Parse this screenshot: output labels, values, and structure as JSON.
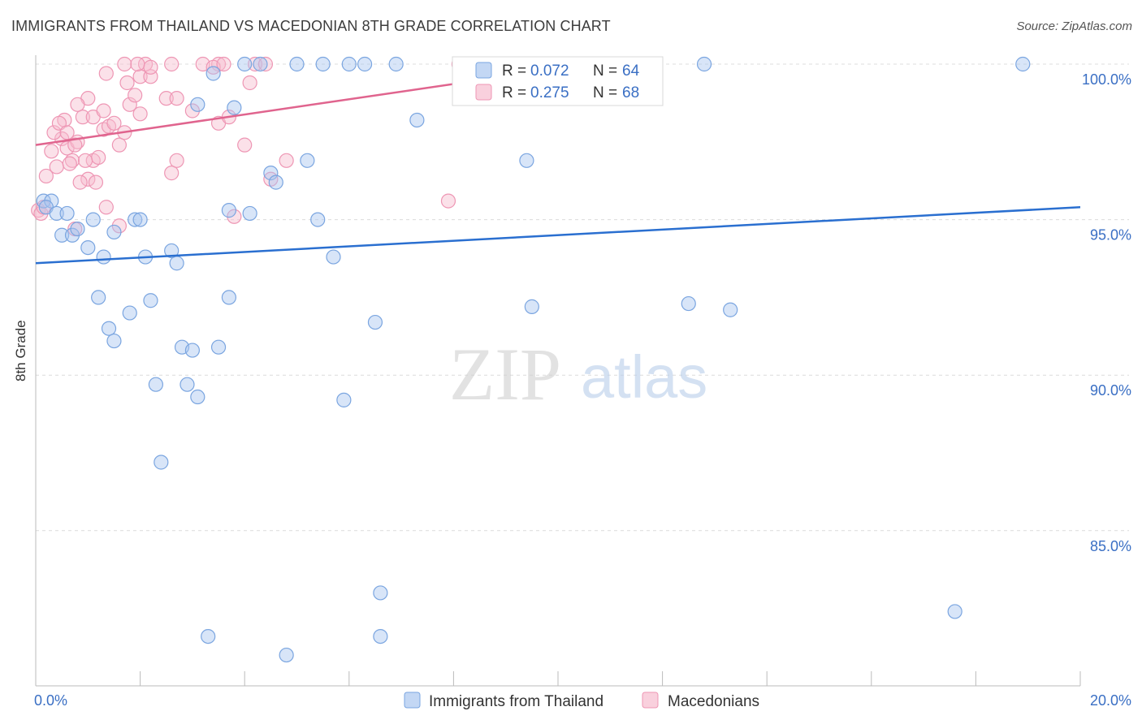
{
  "title": "IMMIGRANTS FROM THAILAND VS MACEDONIAN 8TH GRADE CORRELATION CHART",
  "source": "Source: ZipAtlas.com",
  "watermark": {
    "zip": "ZIP",
    "atlas": "atlas"
  },
  "colors": {
    "blue_fill": "#a9c6f0",
    "blue_stroke": "#7aa5e0",
    "blue_line": "#2a6fd0",
    "pink_fill": "#f6bccf",
    "pink_stroke": "#ee96b4",
    "pink_line": "#e0648e",
    "grid": "#dcdcdc",
    "axis_text": "#3a6fc4"
  },
  "legend": {
    "r_label": "R =",
    "n_label": "N =",
    "rows": [
      {
        "name": "blue",
        "r": "0.072",
        "n": "64"
      },
      {
        "name": "pink",
        "r": "0.275",
        "n": "68"
      }
    ]
  },
  "chart_data": {
    "type": "scatter",
    "title": "IMMIGRANTS FROM THAILAND VS MACEDONIAN 8TH GRADE CORRELATION CHART",
    "xlabel": "",
    "ylabel": "8th Grade",
    "xlim": [
      0,
      20
    ],
    "ylim": [
      80.5,
      100.5
    ],
    "x_tick_labels": [
      {
        "value": 0,
        "label": "0.0%"
      },
      {
        "value": 20,
        "label": "20.0%"
      }
    ],
    "y_tick_labels": [
      {
        "value": 100,
        "label": "100.0%"
      },
      {
        "value": 95,
        "label": "95.0%"
      },
      {
        "value": 90,
        "label": "90.0%"
      },
      {
        "value": 85,
        "label": "85.0%"
      }
    ],
    "series": [
      {
        "name": "Immigrants from Thailand",
        "color": "blue",
        "trend": {
          "x": [
            0,
            20
          ],
          "y": [
            93.6,
            95.4
          ]
        },
        "points": [
          [
            0.15,
            95.6
          ],
          [
            0.3,
            95.6
          ],
          [
            0.2,
            95.4
          ],
          [
            0.4,
            95.2
          ],
          [
            0.6,
            95.2
          ],
          [
            0.5,
            94.5
          ],
          [
            0.7,
            94.5
          ],
          [
            0.8,
            94.7
          ],
          [
            1.1,
            95.0
          ],
          [
            1.5,
            94.6
          ],
          [
            1.9,
            95.0
          ],
          [
            2.0,
            95.0
          ],
          [
            3.7,
            95.3
          ],
          [
            4.1,
            95.2
          ],
          [
            5.4,
            95.0
          ],
          [
            1.0,
            94.1
          ],
          [
            1.3,
            93.8
          ],
          [
            2.1,
            93.8
          ],
          [
            2.6,
            94.0
          ],
          [
            2.7,
            93.6
          ],
          [
            5.7,
            93.8
          ],
          [
            1.2,
            92.5
          ],
          [
            1.8,
            92.0
          ],
          [
            2.2,
            92.4
          ],
          [
            3.7,
            92.5
          ],
          [
            6.5,
            91.7
          ],
          [
            1.4,
            91.5
          ],
          [
            1.5,
            91.1
          ],
          [
            2.8,
            90.9
          ],
          [
            3.0,
            90.8
          ],
          [
            3.5,
            90.9
          ],
          [
            2.3,
            89.7
          ],
          [
            2.9,
            89.7
          ],
          [
            3.1,
            89.3
          ],
          [
            5.9,
            89.2
          ],
          [
            2.4,
            87.2
          ],
          [
            3.4,
            99.7
          ],
          [
            3.1,
            98.7
          ],
          [
            3.8,
            98.6
          ],
          [
            4.0,
            100.0
          ],
          [
            4.3,
            100.0
          ],
          [
            5.0,
            100.0
          ],
          [
            5.5,
            100.0
          ],
          [
            6.0,
            100.0
          ],
          [
            6.3,
            100.0
          ],
          [
            6.9,
            100.0
          ],
          [
            7.3,
            98.2
          ],
          [
            4.5,
            96.5
          ],
          [
            4.6,
            96.2
          ],
          [
            5.2,
            96.9
          ],
          [
            9.4,
            96.9
          ],
          [
            9.5,
            92.2
          ],
          [
            12.5,
            92.3
          ],
          [
            13.3,
            92.1
          ],
          [
            11.4,
            100.0
          ],
          [
            12.8,
            100.0
          ],
          [
            18.9,
            100.0
          ],
          [
            17.6,
            82.4
          ],
          [
            6.6,
            83.0
          ],
          [
            3.3,
            81.6
          ],
          [
            6.6,
            81.6
          ],
          [
            4.8,
            81.0
          ],
          [
            8.4,
            100.0
          ],
          [
            11.2,
            100.0
          ]
        ]
      },
      {
        "name": "Macedonians",
        "color": "pink",
        "trend": {
          "x": [
            0,
            10.2
          ],
          "y": [
            97.4,
            99.9
          ]
        },
        "points": [
          [
            0.05,
            95.3
          ],
          [
            0.1,
            95.2
          ],
          [
            0.15,
            95.4
          ],
          [
            0.2,
            96.4
          ],
          [
            0.3,
            97.2
          ],
          [
            0.4,
            96.7
          ],
          [
            0.5,
            97.6
          ],
          [
            0.6,
            97.3
          ],
          [
            0.7,
            96.9
          ],
          [
            0.8,
            97.5
          ],
          [
            0.35,
            97.8
          ],
          [
            0.55,
            98.2
          ],
          [
            0.9,
            98.3
          ],
          [
            1.0,
            96.3
          ],
          [
            1.1,
            96.9
          ],
          [
            1.2,
            97.0
          ],
          [
            1.3,
            97.9
          ],
          [
            1.4,
            98.0
          ],
          [
            1.5,
            98.1
          ],
          [
            1.6,
            97.4
          ],
          [
            1.7,
            97.8
          ],
          [
            1.8,
            98.7
          ],
          [
            1.9,
            99.0
          ],
          [
            2.0,
            98.4
          ],
          [
            1.0,
            98.9
          ],
          [
            1.1,
            98.3
          ],
          [
            1.3,
            98.5
          ],
          [
            0.8,
            98.7
          ],
          [
            0.45,
            98.1
          ],
          [
            0.6,
            97.8
          ],
          [
            0.75,
            97.4
          ],
          [
            0.65,
            96.8
          ],
          [
            0.95,
            96.9
          ],
          [
            1.15,
            96.2
          ],
          [
            1.35,
            95.4
          ],
          [
            1.6,
            94.8
          ],
          [
            0.75,
            94.7
          ],
          [
            1.35,
            99.7
          ],
          [
            1.75,
            99.4
          ],
          [
            2.0,
            99.6
          ],
          [
            2.2,
            99.6
          ],
          [
            2.5,
            98.9
          ],
          [
            2.7,
            98.9
          ],
          [
            3.0,
            98.5
          ],
          [
            3.5,
            98.1
          ],
          [
            3.7,
            98.3
          ],
          [
            1.7,
            100.0
          ],
          [
            2.1,
            100.0
          ],
          [
            2.6,
            100.0
          ],
          [
            3.2,
            100.0
          ],
          [
            3.5,
            100.0
          ],
          [
            4.2,
            100.0
          ],
          [
            4.1,
            99.4
          ],
          [
            4.0,
            97.4
          ],
          [
            4.5,
            96.3
          ],
          [
            4.8,
            96.9
          ],
          [
            7.9,
            95.6
          ],
          [
            3.8,
            95.1
          ],
          [
            2.6,
            96.5
          ],
          [
            2.7,
            96.9
          ],
          [
            2.2,
            99.9
          ],
          [
            1.95,
            100.0
          ],
          [
            3.4,
            99.9
          ],
          [
            8.1,
            100.0
          ],
          [
            8.3,
            100.0
          ],
          [
            3.6,
            100.0
          ],
          [
            4.4,
            100.0
          ],
          [
            0.85,
            96.2
          ]
        ]
      }
    ],
    "bottom_legend": [
      "Immigrants from Thailand",
      "Macedonians"
    ]
  }
}
